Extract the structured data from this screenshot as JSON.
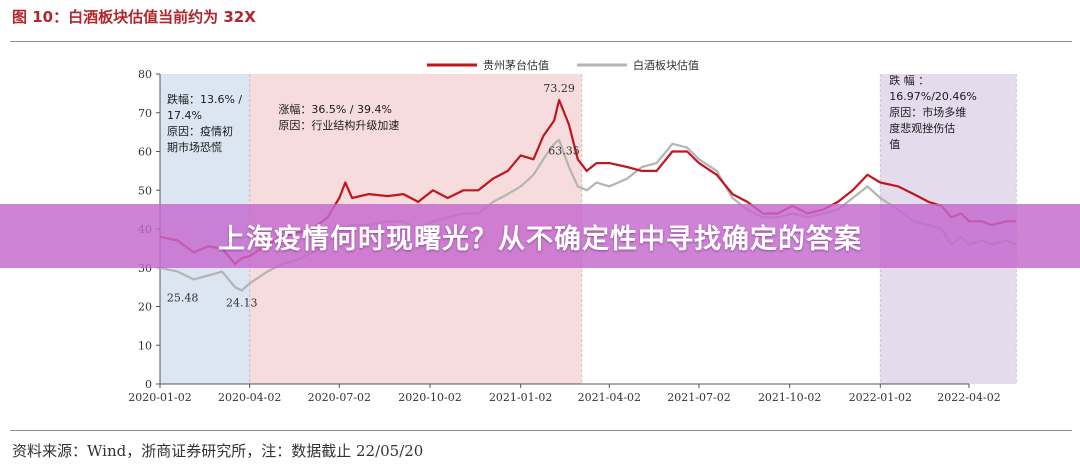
{
  "figure": {
    "title": "图 10：白酒板块估值当前约为 32X",
    "source_note": "资料来源：Wind，浙商证券研究所，注：数据截止 22/05/20"
  },
  "banner": {
    "text": "上海疫情何时现曙光？从不确定性中寻找确定的答案"
  },
  "colors": {
    "title": "#b2262b",
    "moutai": "#c0161d",
    "baijiu": "#b4b4b4",
    "band_blue": "#dbe6f2",
    "band_pink": "#f6dcdc",
    "band_purple": "#e4dcec",
    "banner": "#c468ce"
  },
  "chart_data": {
    "type": "line",
    "x_ticks": [
      "2020-01-02",
      "2020-04-02",
      "2020-07-02",
      "2020-10-02",
      "2021-01-02",
      "2021-04-02",
      "2021-07-02",
      "2021-10-02",
      "2022-01-02",
      "2022-04-02"
    ],
    "ylim": [
      0,
      80
    ],
    "y_ticks": [
      0,
      10,
      20,
      30,
      40,
      50,
      60,
      70,
      80
    ],
    "grid": false,
    "legend_position": "top-center",
    "series": [
      {
        "name": "贵州茅台估值",
        "points": [
          [
            "2020-01-02",
            38
          ],
          [
            "2020-01-20",
            37
          ],
          [
            "2020-02-05",
            34
          ],
          [
            "2020-02-20",
            35.5
          ],
          [
            "2020-03-05",
            35
          ],
          [
            "2020-03-18",
            31
          ],
          [
            "2020-03-25",
            32.5
          ],
          [
            "2020-04-02",
            33
          ],
          [
            "2020-04-20",
            36
          ],
          [
            "2020-05-05",
            38
          ],
          [
            "2020-05-20",
            39
          ],
          [
            "2020-06-05",
            40
          ],
          [
            "2020-06-20",
            43
          ],
          [
            "2020-07-02",
            48
          ],
          [
            "2020-07-08",
            52
          ],
          [
            "2020-07-15",
            48
          ],
          [
            "2020-08-01",
            49
          ],
          [
            "2020-08-20",
            48.5
          ],
          [
            "2020-09-05",
            49
          ],
          [
            "2020-09-20",
            47
          ],
          [
            "2020-10-05",
            50
          ],
          [
            "2020-10-20",
            48
          ],
          [
            "2020-11-05",
            50
          ],
          [
            "2020-11-20",
            50
          ],
          [
            "2020-12-05",
            53
          ],
          [
            "2020-12-20",
            55
          ],
          [
            "2021-01-02",
            59
          ],
          [
            "2021-01-15",
            58
          ],
          [
            "2021-01-25",
            64
          ],
          [
            "2021-02-05",
            68
          ],
          [
            "2021-02-10",
            73.29
          ],
          [
            "2021-02-20",
            67
          ],
          [
            "2021-03-01",
            58
          ],
          [
            "2021-03-10",
            55
          ],
          [
            "2021-03-20",
            57
          ],
          [
            "2021-04-02",
            57
          ],
          [
            "2021-04-20",
            56
          ],
          [
            "2021-05-05",
            55
          ],
          [
            "2021-05-20",
            55
          ],
          [
            "2021-06-05",
            60
          ],
          [
            "2021-06-20",
            60
          ],
          [
            "2021-07-02",
            57
          ],
          [
            "2021-07-20",
            54
          ],
          [
            "2021-08-05",
            49
          ],
          [
            "2021-08-20",
            47
          ],
          [
            "2021-09-05",
            44
          ],
          [
            "2021-09-20",
            44
          ],
          [
            "2021-10-05",
            46
          ],
          [
            "2021-10-20",
            44
          ],
          [
            "2021-11-05",
            45
          ],
          [
            "2021-11-20",
            47
          ],
          [
            "2021-12-05",
            50
          ],
          [
            "2021-12-20",
            54
          ],
          [
            "2022-01-02",
            52
          ],
          [
            "2022-01-20",
            51
          ],
          [
            "2022-02-05",
            49
          ],
          [
            "2022-02-20",
            47
          ],
          [
            "2022-03-05",
            46
          ],
          [
            "2022-03-15",
            43
          ],
          [
            "2022-03-25",
            44
          ],
          [
            "2022-04-02",
            42
          ],
          [
            "2022-04-15",
            42
          ],
          [
            "2022-04-25",
            41
          ],
          [
            "2022-05-10",
            42
          ],
          [
            "2022-05-20",
            42
          ]
        ]
      },
      {
        "name": "白酒板块估值",
        "points": [
          [
            "2020-01-02",
            30
          ],
          [
            "2020-01-20",
            29
          ],
          [
            "2020-02-05",
            27
          ],
          [
            "2020-02-20",
            28
          ],
          [
            "2020-03-05",
            29
          ],
          [
            "2020-03-18",
            25
          ],
          [
            "2020-03-25",
            24.13
          ],
          [
            "2020-04-02",
            26
          ],
          [
            "2020-04-20",
            29
          ],
          [
            "2020-05-05",
            31
          ],
          [
            "2020-05-20",
            32
          ],
          [
            "2020-06-05",
            34
          ],
          [
            "2020-06-20",
            36
          ],
          [
            "2020-07-02",
            40
          ],
          [
            "2020-07-15",
            41
          ],
          [
            "2020-08-01",
            41
          ],
          [
            "2020-08-20",
            42
          ],
          [
            "2020-09-05",
            42
          ],
          [
            "2020-09-20",
            40
          ],
          [
            "2020-10-05",
            42
          ],
          [
            "2020-10-20",
            43
          ],
          [
            "2020-11-05",
            44
          ],
          [
            "2020-11-20",
            44
          ],
          [
            "2020-12-05",
            47
          ],
          [
            "2020-12-20",
            49
          ],
          [
            "2021-01-02",
            51
          ],
          [
            "2021-01-15",
            54
          ],
          [
            "2021-01-25",
            58
          ],
          [
            "2021-02-05",
            62
          ],
          [
            "2021-02-10",
            63
          ],
          [
            "2021-02-20",
            56
          ],
          [
            "2021-03-01",
            51
          ],
          [
            "2021-03-10",
            50
          ],
          [
            "2021-03-20",
            52
          ],
          [
            "2021-04-02",
            51
          ],
          [
            "2021-04-20",
            53
          ],
          [
            "2021-05-05",
            56
          ],
          [
            "2021-05-20",
            57
          ],
          [
            "2021-06-05",
            62
          ],
          [
            "2021-06-20",
            61
          ],
          [
            "2021-07-02",
            58
          ],
          [
            "2021-07-20",
            55
          ],
          [
            "2021-08-05",
            48
          ],
          [
            "2021-08-20",
            45
          ],
          [
            "2021-09-05",
            43
          ],
          [
            "2021-09-20",
            43
          ],
          [
            "2021-10-05",
            44
          ],
          [
            "2021-10-20",
            43
          ],
          [
            "2021-11-05",
            44
          ],
          [
            "2021-11-20",
            45
          ],
          [
            "2021-12-05",
            48
          ],
          [
            "2021-12-20",
            51
          ],
          [
            "2022-01-02",
            48
          ],
          [
            "2022-01-20",
            45
          ],
          [
            "2022-02-05",
            42
          ],
          [
            "2022-02-20",
            41
          ],
          [
            "2022-03-05",
            40
          ],
          [
            "2022-03-15",
            36
          ],
          [
            "2022-03-25",
            38
          ],
          [
            "2022-04-02",
            36
          ],
          [
            "2022-04-15",
            37
          ],
          [
            "2022-04-25",
            36
          ],
          [
            "2022-05-10",
            37
          ],
          [
            "2022-05-20",
            36
          ]
        ]
      }
    ],
    "value_labels": [
      {
        "text": "73.29",
        "x": "2021-02-10",
        "y": 73.29,
        "position": "above"
      },
      {
        "text": "63.35",
        "x": "2021-02-15",
        "y": 63.35,
        "position": "below"
      },
      {
        "text": "25.48",
        "x": "2020-01-25",
        "y": 25.48,
        "position": "below"
      },
      {
        "text": "24.13",
        "x": "2020-03-25",
        "y": 24.13,
        "position": "below"
      }
    ],
    "bands": [
      {
        "from": "2020-01-02",
        "to": "2020-04-02",
        "color": "band_blue",
        "lines": [
          "跌幅：13.6% /",
          "17.4%",
          "原因：疫情初",
          "期市场恐慌"
        ],
        "label_x": "2020-01-03",
        "label_y": 73.5
      },
      {
        "from": "2020-04-02",
        "to": "2021-03-05",
        "color": "band_pink",
        "lines": [
          "涨幅：36.5% / 39.4%",
          "原因：行业结构升级加速"
        ],
        "label_x": "2020-04-25",
        "label_y": 71
      },
      {
        "from": "2022-01-02",
        "to": "2022-05-20",
        "color": "band_purple",
        "lines": [
          "跌       幅       ：",
          "16.97%/20.46%",
          "原因：市场多维",
          "度悲观挫伤估",
          "值"
        ],
        "label_x": "2022-01-05",
        "label_y": 78.5
      }
    ]
  }
}
